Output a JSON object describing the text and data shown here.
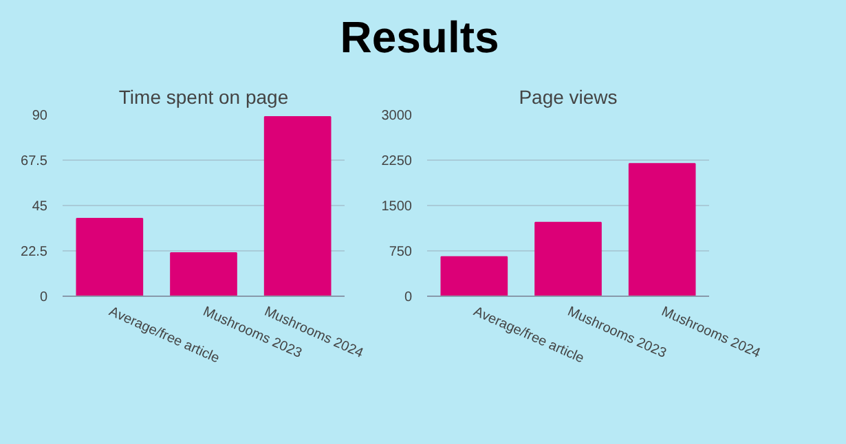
{
  "chart_data": [
    {
      "type": "other",
      "title": "Results"
    },
    {
      "type": "bar",
      "title": "Time spent on page",
      "categories": [
        "Average/free article",
        "Mushrooms 2023",
        "Mushrooms 2024"
      ],
      "values": [
        38.5,
        21.5,
        89
      ],
      "color": "#dc0077",
      "ylim": [
        0,
        90
      ],
      "yticks": [
        0,
        22.5,
        45,
        67.5,
        90
      ],
      "grid": "y"
    },
    {
      "type": "bar",
      "title": "Page views",
      "categories": [
        "Average/free article",
        "Mushrooms 2023",
        "Mushrooms 2024"
      ],
      "values": [
        650,
        1220,
        2190
      ],
      "color": "#dc0077",
      "ylim": [
        0,
        3000
      ],
      "yticks": [
        0,
        750,
        1500,
        2250,
        3000
      ],
      "grid": "y"
    }
  ]
}
